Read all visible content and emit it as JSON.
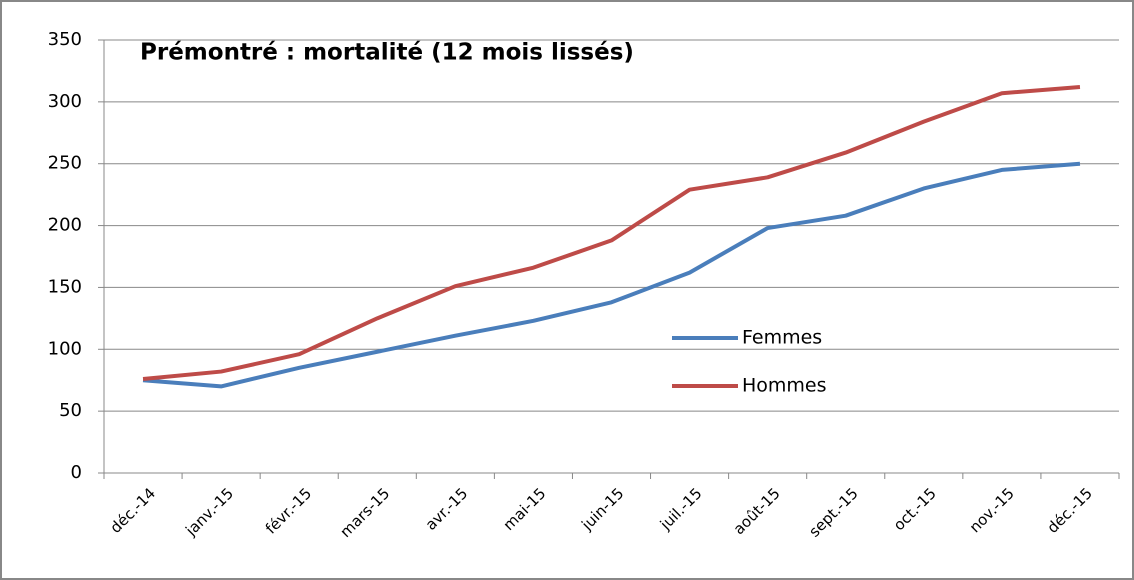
{
  "chart_data": {
    "type": "line",
    "title": "Prémontré : mortalité (12 mois lissés)",
    "categories": [
      "déc.-14",
      "janv.-15",
      "févr.-15",
      "mars-15",
      "avr.-15",
      "mai-15",
      "juin-15",
      "juil.-15",
      "août-15",
      "sept.-15",
      "oct.-15",
      "nov.-15",
      "déc.-15"
    ],
    "series": [
      {
        "name": "Femmes",
        "color": "#4a7ebb",
        "values": [
          75,
          70,
          85,
          98,
          111,
          123,
          138,
          162,
          198,
          208,
          230,
          245,
          250
        ]
      },
      {
        "name": "Hommes",
        "color": "#be4b48",
        "values": [
          76,
          82,
          96,
          125,
          151,
          166,
          188,
          229,
          239,
          259,
          284,
          307,
          312
        ]
      }
    ],
    "ylim": [
      0,
      350
    ],
    "yticks": [
      0,
      50,
      100,
      150,
      200,
      250,
      300,
      350
    ],
    "grid": true
  }
}
